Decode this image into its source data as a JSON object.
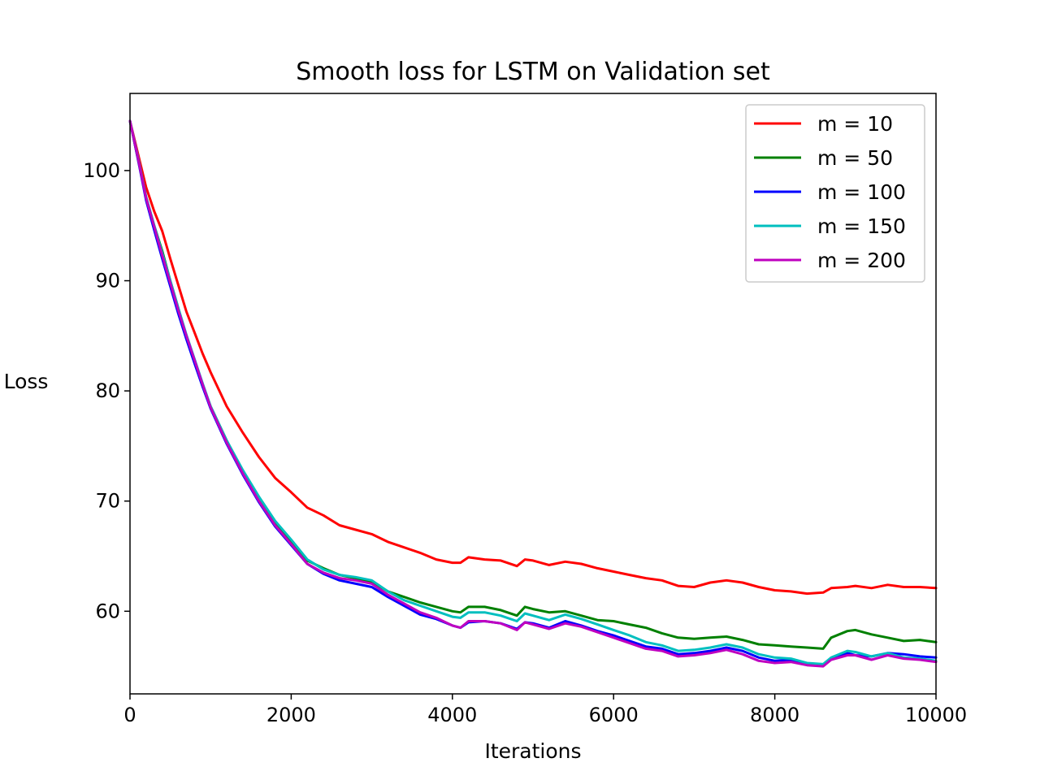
{
  "chart_data": {
    "type": "line",
    "title": "Smooth loss for LSTM on Validation set",
    "xlabel": "Iterations",
    "ylabel": "Loss",
    "xlim": [
      0,
      10000
    ],
    "ylim": [
      52.5,
      107
    ],
    "xticks": [
      "0",
      "2000",
      "4000",
      "6000",
      "8000",
      "10000"
    ],
    "yticks": [
      "60",
      "70",
      "80",
      "90",
      "100"
    ],
    "legend_position": "top-right",
    "grid": false,
    "x": [
      0,
      100,
      200,
      300,
      400,
      500,
      600,
      700,
      800,
      900,
      1000,
      1200,
      1400,
      1600,
      1800,
      2000,
      2200,
      2400,
      2600,
      2800,
      3000,
      3200,
      3400,
      3600,
      3800,
      4000,
      4100,
      4200,
      4400,
      4600,
      4800,
      4900,
      5000,
      5200,
      5400,
      5600,
      5800,
      6000,
      6200,
      6400,
      6600,
      6800,
      7000,
      7200,
      7400,
      7600,
      7800,
      8000,
      8200,
      8400,
      8600,
      8700,
      8900,
      9000,
      9200,
      9400,
      9600,
      9800,
      10000
    ],
    "series": [
      {
        "name": "m = 10",
        "color": "#ff0000",
        "values": [
          104.5,
          101.5,
          98.5,
          96.3,
          94.5,
          92.0,
          89.6,
          87.2,
          85.3,
          83.4,
          81.7,
          78.6,
          76.2,
          74.0,
          72.1,
          70.8,
          69.4,
          68.7,
          67.8,
          67.4,
          67.0,
          66.3,
          65.8,
          65.3,
          64.7,
          64.4,
          64.4,
          64.9,
          64.7,
          64.6,
          64.1,
          64.7,
          64.6,
          64.2,
          64.5,
          64.3,
          63.9,
          63.6,
          63.3,
          63.0,
          62.8,
          62.3,
          62.2,
          62.6,
          62.8,
          62.6,
          62.2,
          61.9,
          61.8,
          61.6,
          61.7,
          62.1,
          62.2,
          62.3,
          62.1,
          62.4,
          62.2,
          62.2,
          62.1
        ]
      },
      {
        "name": "m = 50",
        "color": "#008000",
        "values": [
          104.5,
          101.0,
          97.6,
          95.0,
          92.7,
          90.0,
          87.5,
          85.0,
          82.8,
          80.6,
          78.6,
          75.5,
          72.6,
          70.0,
          68.0,
          66.3,
          64.6,
          63.9,
          63.3,
          63.0,
          62.7,
          61.8,
          61.3,
          60.8,
          60.4,
          60.0,
          59.9,
          60.4,
          60.4,
          60.1,
          59.6,
          60.4,
          60.2,
          59.9,
          60.0,
          59.6,
          59.2,
          59.1,
          58.8,
          58.5,
          58.0,
          57.6,
          57.5,
          57.6,
          57.7,
          57.4,
          57.0,
          56.9,
          56.8,
          56.7,
          56.6,
          57.6,
          58.2,
          58.3,
          57.9,
          57.6,
          57.3,
          57.4,
          57.2
        ]
      },
      {
        "name": "m = 100",
        "color": "#0000ff",
        "values": [
          104.5,
          101.0,
          97.3,
          94.6,
          92.0,
          89.5,
          87.0,
          84.7,
          82.5,
          80.4,
          78.4,
          75.2,
          72.4,
          69.9,
          67.7,
          66.0,
          64.3,
          63.4,
          62.8,
          62.5,
          62.2,
          61.3,
          60.5,
          59.7,
          59.3,
          58.7,
          58.5,
          59.0,
          59.1,
          58.9,
          58.4,
          59.0,
          58.9,
          58.5,
          59.1,
          58.7,
          58.2,
          57.8,
          57.3,
          56.8,
          56.6,
          56.1,
          56.2,
          56.4,
          56.7,
          56.4,
          55.8,
          55.5,
          55.6,
          55.2,
          55.1,
          55.7,
          56.2,
          56.0,
          55.9,
          56.2,
          56.1,
          55.9,
          55.8
        ]
      },
      {
        "name": "m = 150",
        "color": "#00bfbf",
        "values": [
          104.5,
          101.2,
          97.6,
          95.0,
          92.5,
          90.0,
          87.5,
          85.1,
          82.9,
          80.7,
          78.6,
          75.5,
          72.8,
          70.4,
          68.2,
          66.5,
          64.7,
          63.8,
          63.3,
          63.1,
          62.8,
          61.8,
          61.0,
          60.5,
          60.0,
          59.5,
          59.4,
          59.9,
          59.9,
          59.6,
          59.1,
          59.8,
          59.6,
          59.2,
          59.7,
          59.3,
          58.8,
          58.3,
          57.8,
          57.2,
          56.9,
          56.4,
          56.5,
          56.7,
          57.0,
          56.7,
          56.1,
          55.8,
          55.7,
          55.3,
          55.2,
          55.8,
          56.4,
          56.3,
          55.9,
          56.2,
          55.8,
          55.7,
          55.5
        ]
      },
      {
        "name": "m = 200",
        "color": "#bf00bf",
        "values": [
          104.5,
          101.1,
          97.5,
          94.9,
          92.3,
          89.8,
          87.3,
          85.0,
          82.8,
          80.6,
          78.5,
          75.3,
          72.5,
          70.0,
          67.8,
          66.1,
          64.3,
          63.5,
          63.0,
          62.8,
          62.5,
          61.5,
          60.7,
          59.9,
          59.4,
          58.7,
          58.5,
          59.1,
          59.1,
          58.9,
          58.3,
          59.0,
          58.8,
          58.4,
          58.9,
          58.6,
          58.1,
          57.6,
          57.1,
          56.6,
          56.4,
          55.9,
          56.0,
          56.2,
          56.5,
          56.1,
          55.5,
          55.3,
          55.4,
          55.1,
          55.0,
          55.6,
          56.0,
          56.0,
          55.6,
          56.0,
          55.7,
          55.6,
          55.4
        ]
      }
    ]
  }
}
